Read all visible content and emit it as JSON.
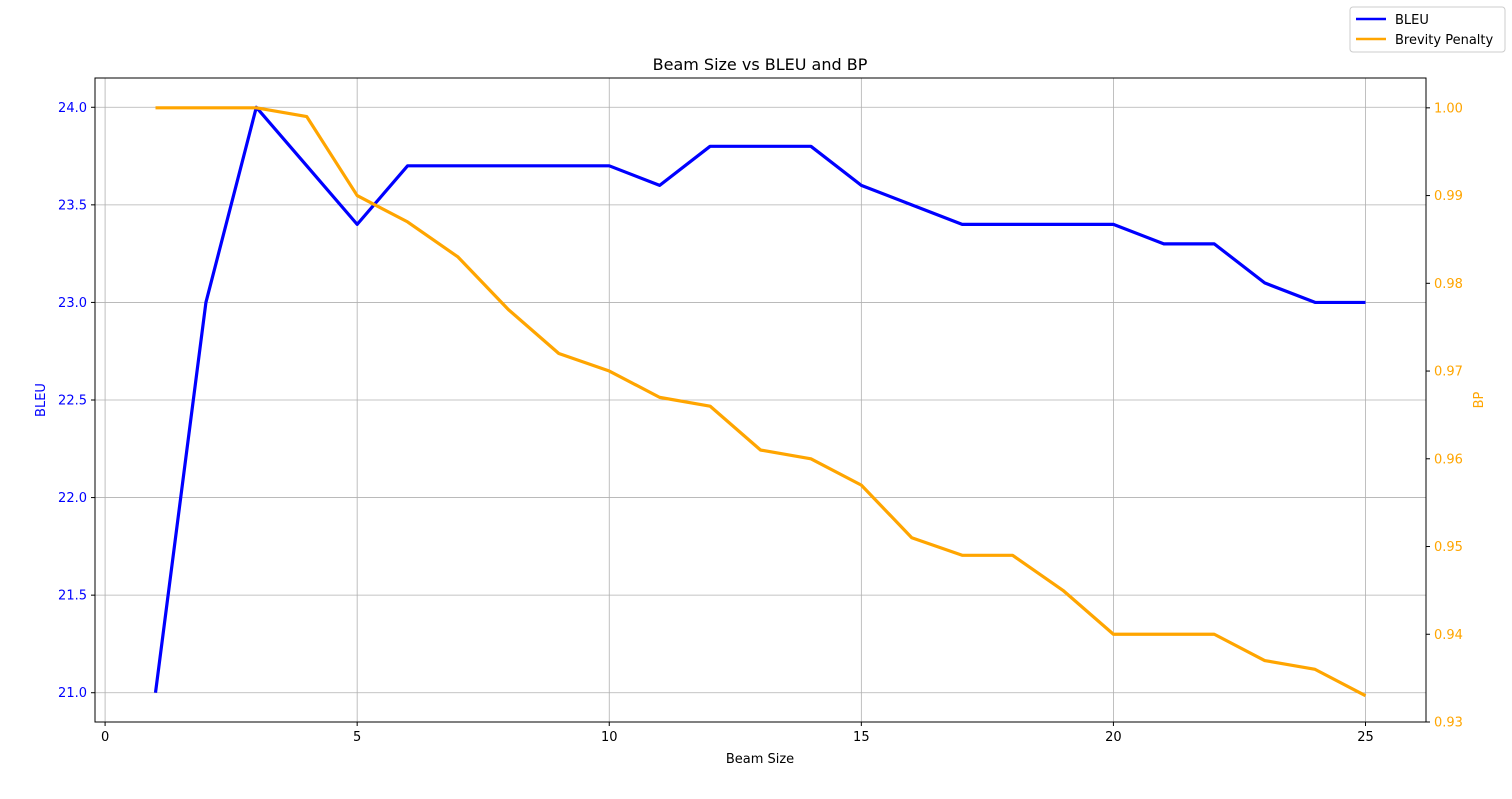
{
  "chart_data": {
    "type": "line",
    "title": "Beam Size vs BLEU and BP",
    "xlabel": "Beam Size",
    "ylabel_left": "BLEU",
    "ylabel_right": "BP",
    "x": [
      1,
      2,
      3,
      4,
      5,
      6,
      7,
      8,
      9,
      10,
      11,
      12,
      13,
      14,
      15,
      16,
      17,
      18,
      19,
      20,
      21,
      22,
      23,
      24,
      25
    ],
    "xlim": [
      -0.2,
      26.2
    ],
    "ylim_left": [
      20.85,
      24.15
    ],
    "ylim_right": [
      0.93,
      1.0034
    ],
    "x_ticks": [
      0,
      5,
      10,
      15,
      20,
      25
    ],
    "y_ticks_left": [
      21.0,
      21.5,
      22.0,
      22.5,
      23.0,
      23.5,
      24.0
    ],
    "y_ticks_left_labels": [
      "21.0",
      "21.5",
      "22.0",
      "22.5",
      "23.0",
      "23.5",
      "24.0"
    ],
    "y_ticks_right": [
      0.93,
      0.94,
      0.95,
      0.96,
      0.97,
      0.98,
      0.99,
      1.0
    ],
    "y_ticks_right_labels": [
      "0.93",
      "0.94",
      "0.95",
      "0.96",
      "0.97",
      "0.98",
      "0.99",
      "1.00"
    ],
    "grid": true,
    "legend_position": "top-right (outside plot)",
    "series": [
      {
        "name": "BLEU",
        "axis": "left",
        "color": "#0000ff",
        "values": [
          21.0,
          23.0,
          24.0,
          23.7,
          23.4,
          23.7,
          23.7,
          23.7,
          23.7,
          23.7,
          23.6,
          23.8,
          23.8,
          23.8,
          23.6,
          23.5,
          23.4,
          23.4,
          23.4,
          23.4,
          23.3,
          23.3,
          23.1,
          23.0,
          23.0
        ]
      },
      {
        "name": "Brevity Penalty",
        "axis": "right",
        "color": "#ffa500",
        "values": [
          1.0,
          1.0,
          1.0,
          0.999,
          0.99,
          0.987,
          0.983,
          0.977,
          0.972,
          0.97,
          0.967,
          0.966,
          0.961,
          0.96,
          0.957,
          0.951,
          0.949,
          0.949,
          0.945,
          0.94,
          0.94,
          0.94,
          0.937,
          0.936,
          0.933
        ]
      }
    ]
  }
}
